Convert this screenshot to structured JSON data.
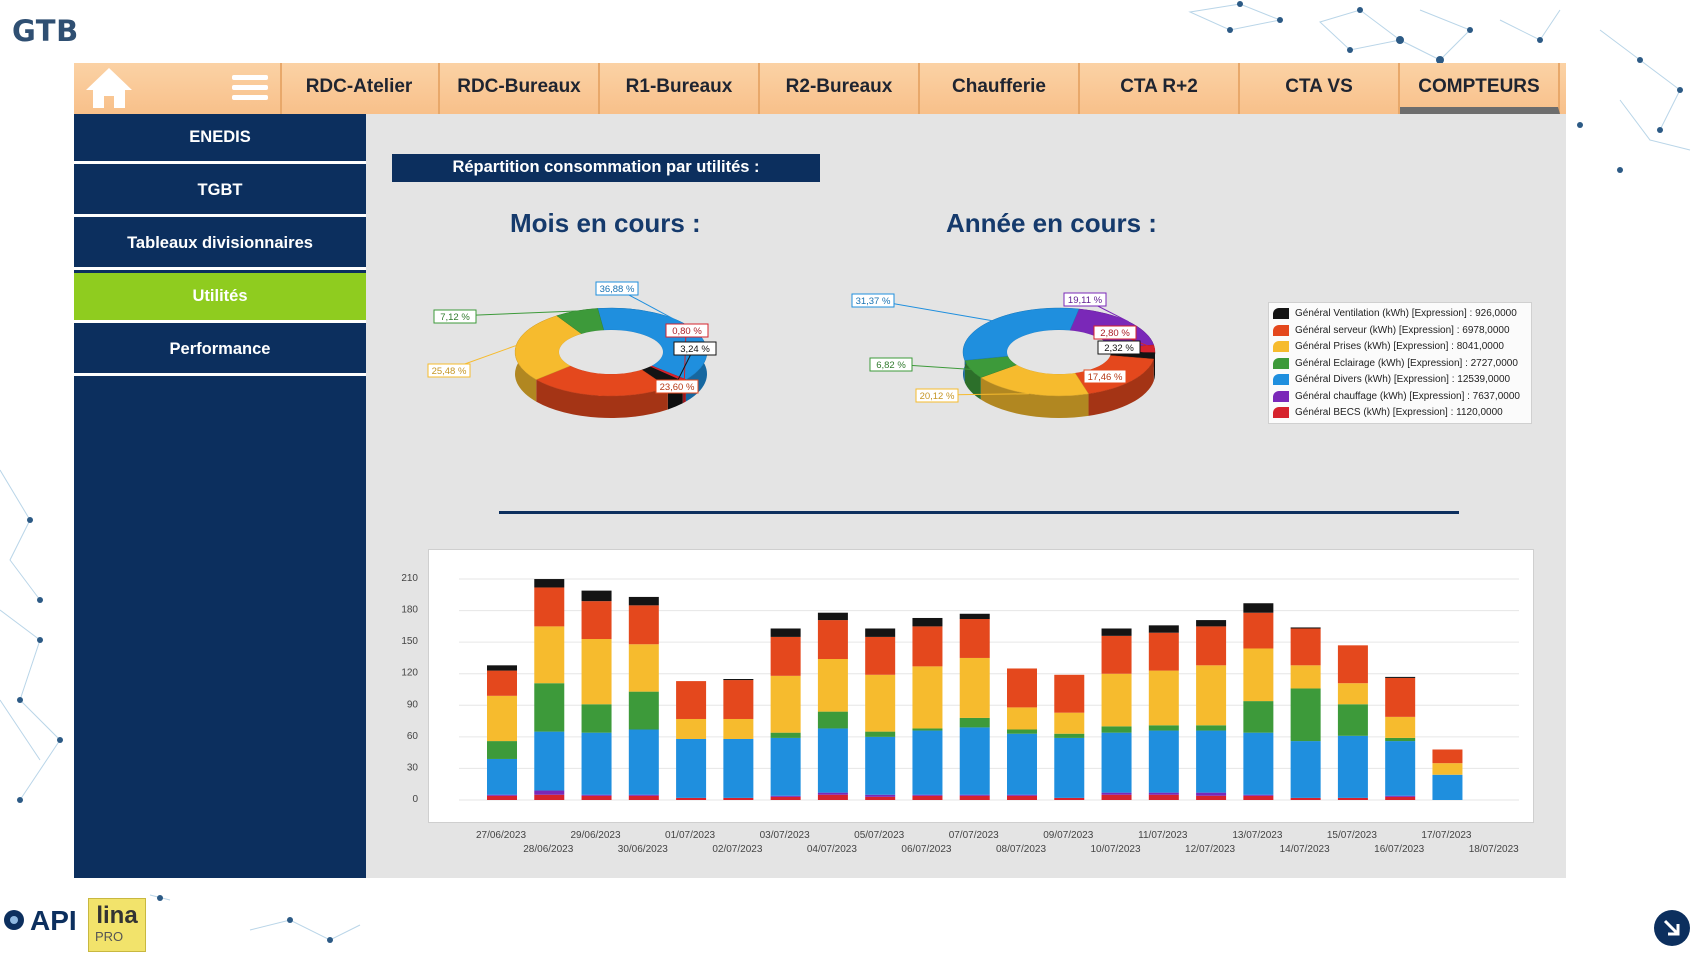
{
  "app": {
    "title": "GTB"
  },
  "topnav": {
    "tabs": [
      {
        "label": "RDC-Atelier",
        "active": false
      },
      {
        "label": "RDC-Bureaux",
        "active": false
      },
      {
        "label": "R1-Bureaux",
        "active": false
      },
      {
        "label": "R2-Bureaux",
        "active": false
      },
      {
        "label": "Chaufferie",
        "active": false
      },
      {
        "label": "CTA R+2",
        "active": false
      },
      {
        "label": "CTA VS",
        "active": false
      },
      {
        "label": "COMPTEURS",
        "active": true
      }
    ],
    "icons": [
      "home-icon",
      "menu-icon"
    ]
  },
  "sidebar": {
    "items": [
      {
        "label": "ENEDIS",
        "active": false
      },
      {
        "label": "TGBT",
        "active": false
      },
      {
        "label": "Tableaux divisionnaires",
        "active": false
      },
      {
        "label": "Utilités",
        "active": true
      },
      {
        "label": "Performance",
        "active": false
      }
    ]
  },
  "main": {
    "section_title": "Répartition consommation par utilités :",
    "month_title": "Mois en cours :",
    "year_title": "Année en cours :"
  },
  "colors": {
    "ventilation": "#141414",
    "serveur": "#e4481d",
    "prises": "#f6bb2e",
    "eclairage": "#3d9a3a",
    "divers": "#1f8fde",
    "chauffage": "#7a28b8",
    "becs": "#d6232d",
    "navy": "#0c2f5e",
    "tabs": "#f9c690",
    "accent": "#8fcc1f"
  },
  "legend": [
    {
      "label": "Général Ventilation (kWh) [Expression] : 926,0000",
      "color_key": "ventilation"
    },
    {
      "label": "Général serveur (kWh) [Expression] : 6978,0000",
      "color_key": "serveur"
    },
    {
      "label": "Général Prises (kWh) [Expression] : 8041,0000",
      "color_key": "prises"
    },
    {
      "label": "Général Eclairage (kWh) [Expression] : 2727,0000",
      "color_key": "eclairage"
    },
    {
      "label": "Général Divers (kWh) [Expression] : 12539,0000",
      "color_key": "divers"
    },
    {
      "label": "Général chauffage (kWh) [Expression] : 7637,0000",
      "color_key": "chauffage"
    },
    {
      "label": "Général BECS (kWh) [Expression] : 1120,0000",
      "color_key": "becs"
    }
  ],
  "chart_data": [
    {
      "type": "pie",
      "title": "Mois en cours :",
      "slices": [
        {
          "key": "divers",
          "value": 36.88,
          "label": "36,88 %"
        },
        {
          "key": "becs",
          "value": 0.8,
          "label": "0,80 %"
        },
        {
          "key": "ventilation",
          "value": 3.24,
          "label": "3,24 %"
        },
        {
          "key": "serveur",
          "value": 23.6,
          "label": "23,60 %"
        },
        {
          "key": "prises",
          "value": 25.48,
          "label": "25,48 %"
        },
        {
          "key": "eclairage",
          "value": 7.12,
          "label": "7,12 %"
        }
      ]
    },
    {
      "type": "pie",
      "title": "Année en cours :",
      "slices": [
        {
          "key": "chauffage",
          "value": 19.11,
          "label": "19,11 %"
        },
        {
          "key": "becs",
          "value": 2.8,
          "label": "2,80 %"
        },
        {
          "key": "ventilation",
          "value": 2.32,
          "label": "2,32 %"
        },
        {
          "key": "serveur",
          "value": 17.46,
          "label": "17,46 %"
        },
        {
          "key": "prises",
          "value": 20.12,
          "label": "20,12 %"
        },
        {
          "key": "eclairage",
          "value": 6.82,
          "label": "6,82 %"
        },
        {
          "key": "divers",
          "value": 31.37,
          "label": "31,37 %"
        }
      ]
    },
    {
      "type": "bar",
      "stacked": true,
      "ylim": [
        0,
        230
      ],
      "yticks": [
        0,
        30,
        60,
        90,
        120,
        150,
        180,
        210
      ],
      "categories": [
        "27/06/2023",
        "28/06/2023",
        "29/06/2023",
        "30/06/2023",
        "01/07/2023",
        "02/07/2023",
        "03/07/2023",
        "04/07/2023",
        "05/07/2023",
        "06/07/2023",
        "07/07/2023",
        "08/07/2023",
        "09/07/2023",
        "10/07/2023",
        "11/07/2023",
        "12/07/2023",
        "13/07/2023",
        "14/07/2023",
        "15/07/2023",
        "16/07/2023",
        "17/07/2023",
        "18/07/2023"
      ],
      "series": [
        {
          "key": "becs",
          "values": [
            4,
            5,
            4,
            4,
            2,
            2,
            3,
            5,
            3,
            4,
            4,
            4,
            2,
            5,
            5,
            4,
            4,
            2,
            2,
            3,
            0,
            0
          ]
        },
        {
          "key": "chauffage",
          "values": [
            1,
            4,
            1,
            1,
            0,
            0,
            1,
            2,
            2,
            1,
            1,
            1,
            0,
            2,
            2,
            3,
            1,
            0,
            0,
            1,
            0,
            0
          ]
        },
        {
          "key": "divers",
          "values": [
            34,
            56,
            59,
            62,
            56,
            56,
            55,
            61,
            55,
            61,
            64,
            58,
            57,
            57,
            59,
            59,
            59,
            54,
            59,
            52,
            24,
            0
          ]
        },
        {
          "key": "eclairage",
          "values": [
            17,
            46,
            27,
            36,
            0,
            0,
            5,
            16,
            5,
            2,
            9,
            4,
            4,
            6,
            5,
            5,
            30,
            50,
            30,
            3,
            0,
            0
          ]
        },
        {
          "key": "prises",
          "values": [
            43,
            54,
            62,
            45,
            19,
            19,
            54,
            50,
            54,
            59,
            57,
            21,
            20,
            50,
            52,
            57,
            50,
            22,
            20,
            20,
            11,
            0
          ]
        },
        {
          "key": "serveur",
          "values": [
            24,
            37,
            36,
            37,
            36,
            37,
            37,
            37,
            36,
            38,
            37,
            37,
            36,
            36,
            36,
            37,
            34,
            35,
            36,
            37,
            13,
            0
          ]
        },
        {
          "key": "ventilation",
          "values": [
            5,
            8,
            10,
            8,
            0,
            1,
            8,
            7,
            8,
            8,
            5,
            0,
            0,
            7,
            7,
            6,
            9,
            1,
            0,
            1,
            0,
            0
          ]
        }
      ]
    }
  ],
  "footer": {
    "company": "API",
    "product": "lina",
    "product_sub": "PRO"
  }
}
